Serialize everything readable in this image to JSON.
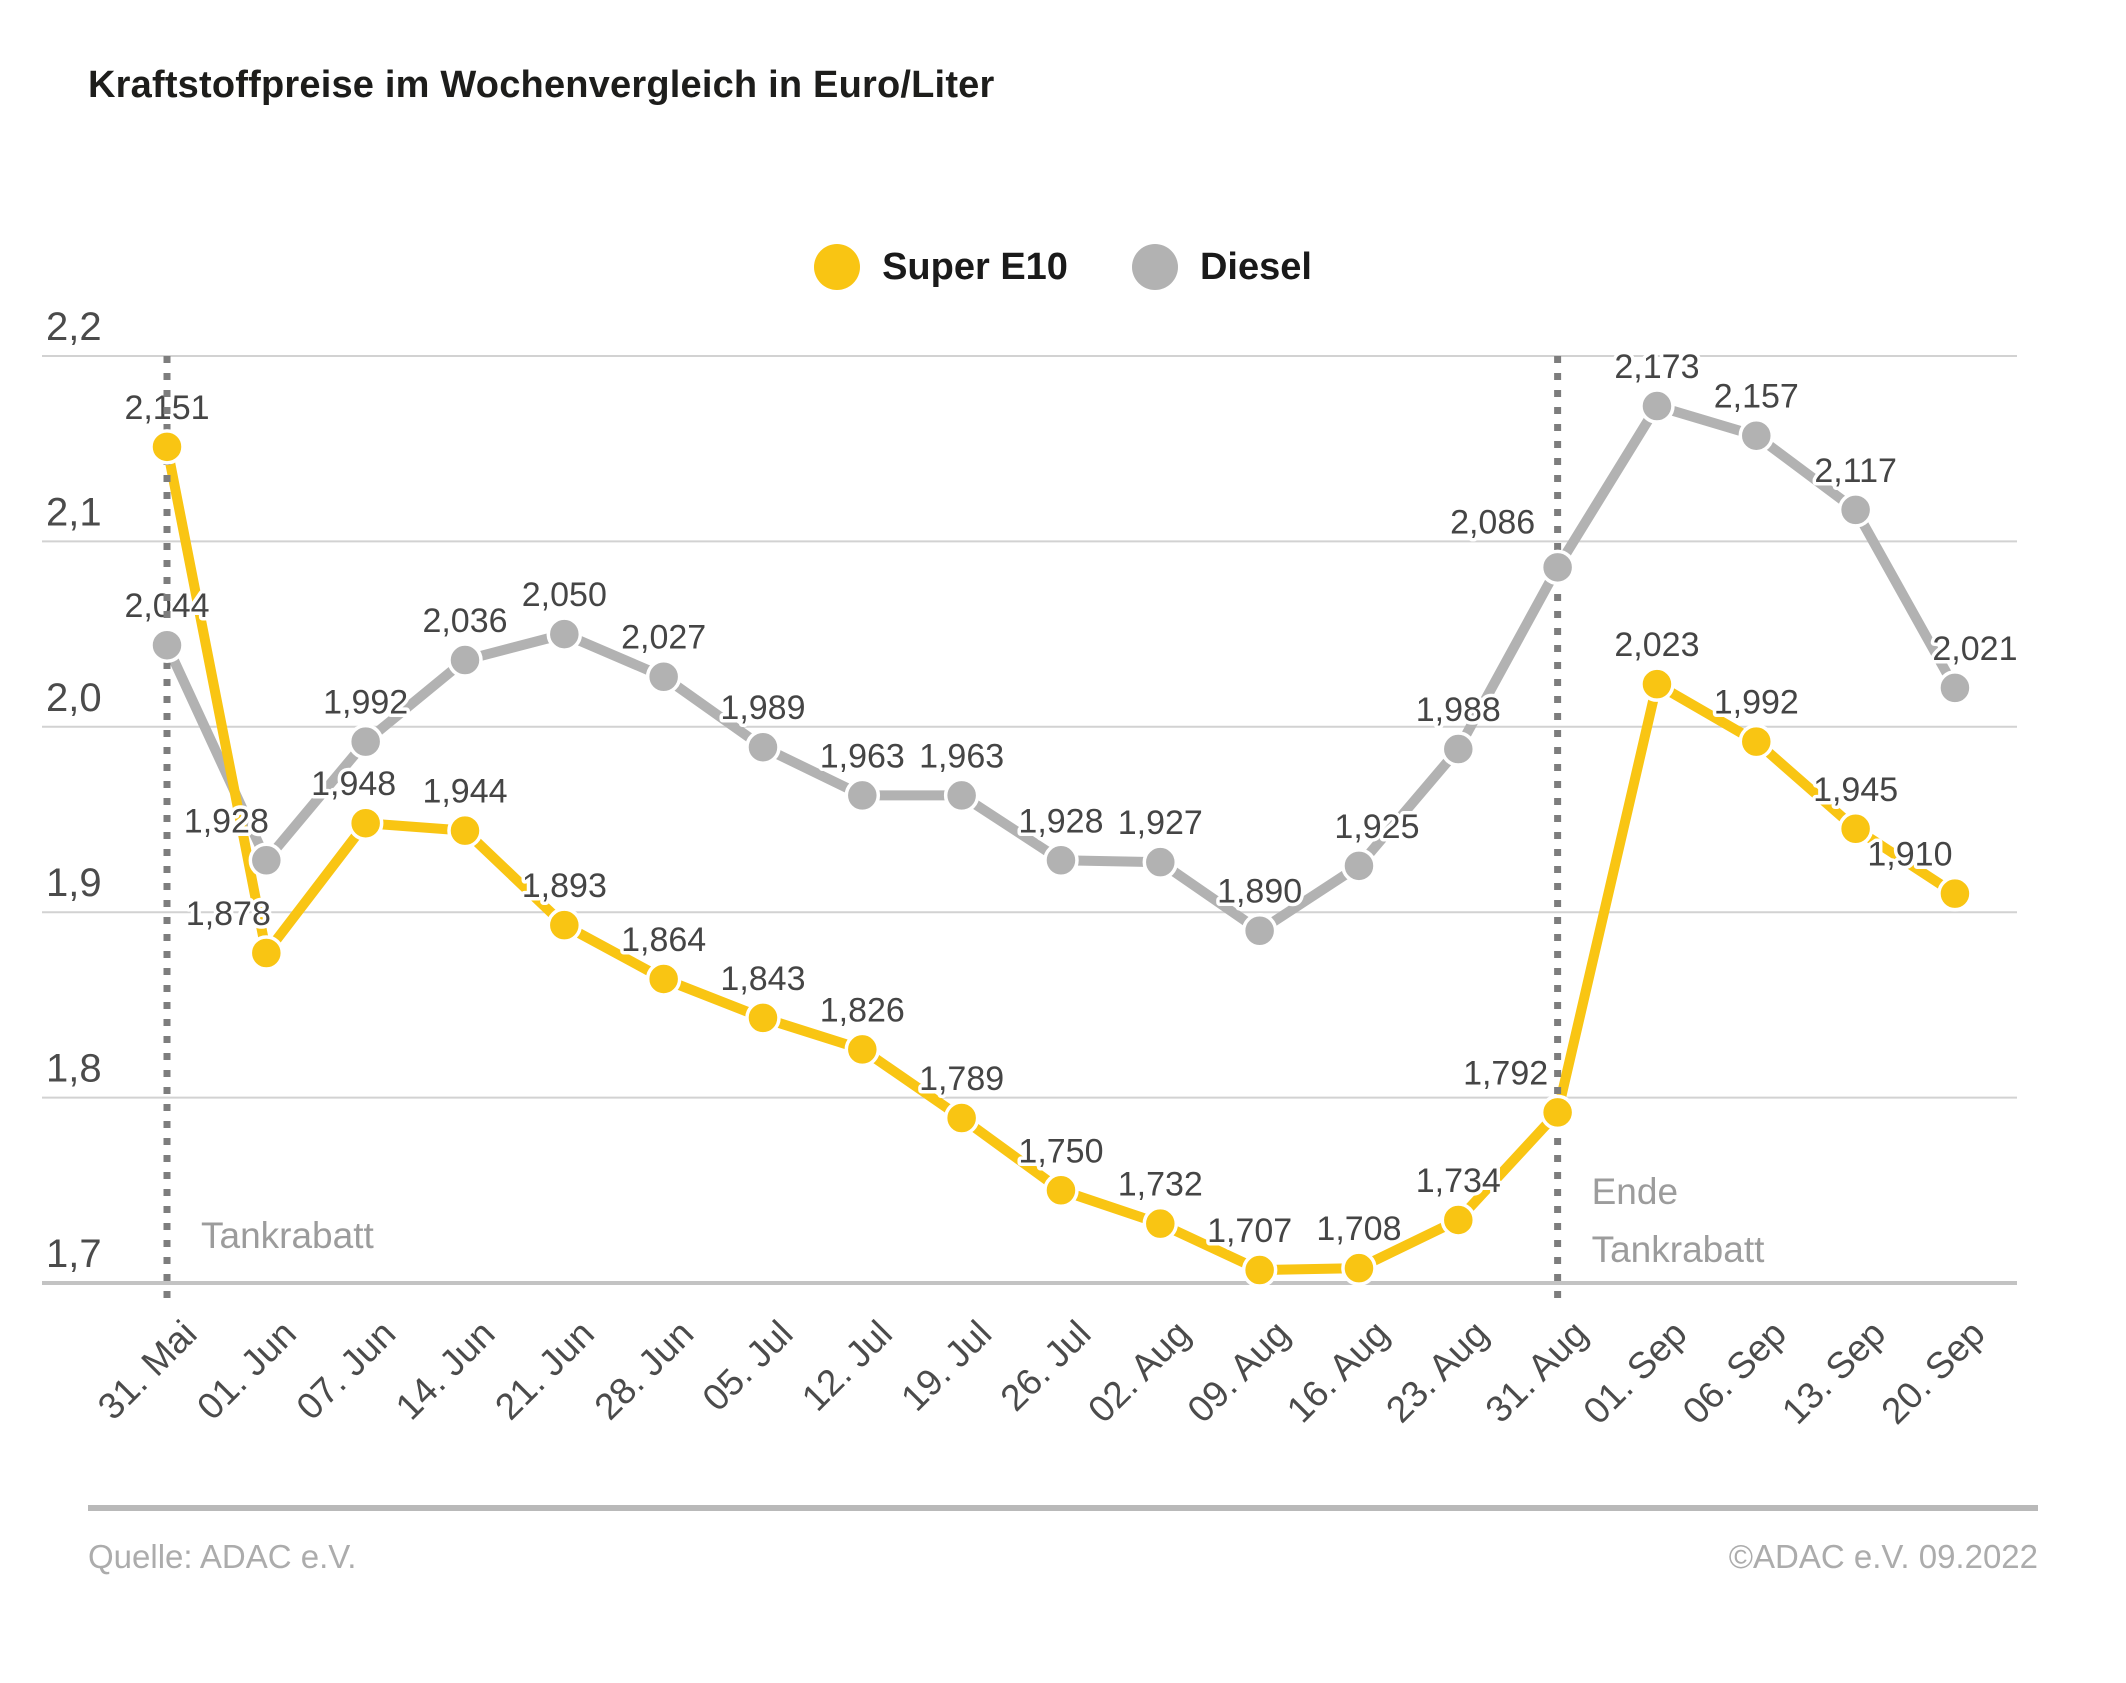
{
  "title": "Kraftstoffpreise im Wochenvergleich in Euro/Liter",
  "legend": {
    "items": [
      {
        "label": "Super E10",
        "color": "#f9c513"
      },
      {
        "label": "Diesel",
        "color": "#b2b2b2"
      }
    ]
  },
  "chart_data": {
    "type": "line",
    "title": "Kraftstoffpreise im Wochenvergleich in Euro/Liter",
    "categories": [
      "31. Mai",
      "01. Jun",
      "07. Jun",
      "14. Jun",
      "21. Jun",
      "28. Jun",
      "05. Jul",
      "12. Jul",
      "19. Jul",
      "26. Jul",
      "02. Aug",
      "09. Aug",
      "16. Aug",
      "23. Aug",
      "31. Aug",
      "01. Sep",
      "06. Sep",
      "13. Sep",
      "20. Sep"
    ],
    "series": [
      {
        "name": "Super E10",
        "color": "#f9c513",
        "values": [
          2.151,
          1.878,
          1.948,
          1.944,
          1.893,
          1.864,
          1.843,
          1.826,
          1.789,
          1.75,
          1.732,
          1.707,
          1.708,
          1.734,
          1.792,
          2.023,
          1.992,
          1.945,
          1.91
        ],
        "labels": [
          "2,151",
          "1,878",
          "1,948",
          "1,944",
          "1,893",
          "1,864",
          "1,843",
          "1,826",
          "1,789",
          "1,750",
          "1,732",
          "1,707",
          "1,708",
          "1,734",
          "1,792",
          "2,023",
          "1,992",
          "1,945",
          "1,910"
        ]
      },
      {
        "name": "Diesel",
        "color": "#b2b2b2",
        "values": [
          2.044,
          1.928,
          1.992,
          2.036,
          2.05,
          2.027,
          1.989,
          1.963,
          1.963,
          1.928,
          1.927,
          1.89,
          1.925,
          1.988,
          2.086,
          2.173,
          2.157,
          2.117,
          2.021
        ],
        "labels": [
          "2,044",
          "1,928",
          "1,992",
          "2,036",
          "2,050",
          "2,027",
          "1,989",
          "1,963",
          "1,963",
          "1,928",
          "1,927",
          "1,890",
          "1,925",
          "1,988",
          "2,086",
          "2,173",
          "2,157",
          "2,117",
          "2,021"
        ]
      }
    ],
    "ylim": [
      1.7,
      2.2
    ],
    "yticks": [
      {
        "value": 2.2,
        "label": "2,2"
      },
      {
        "value": 2.1,
        "label": "2,1"
      },
      {
        "value": 2.0,
        "label": "2,0"
      },
      {
        "value": 1.9,
        "label": "1,9"
      },
      {
        "value": 1.8,
        "label": "1,8"
      },
      {
        "value": 1.7,
        "label": "1,7"
      }
    ],
    "grid": true,
    "legend_position": "top-center",
    "annotations": [
      {
        "lines": [
          "Tankrabatt"
        ],
        "category_index": 0
      },
      {
        "lines": [
          "Ende",
          "Tankrabatt"
        ],
        "category_index": 14
      }
    ]
  },
  "footer": {
    "source": "Quelle: ADAC e.V.",
    "copyright": "©ADAC e.V.  09.2022"
  }
}
